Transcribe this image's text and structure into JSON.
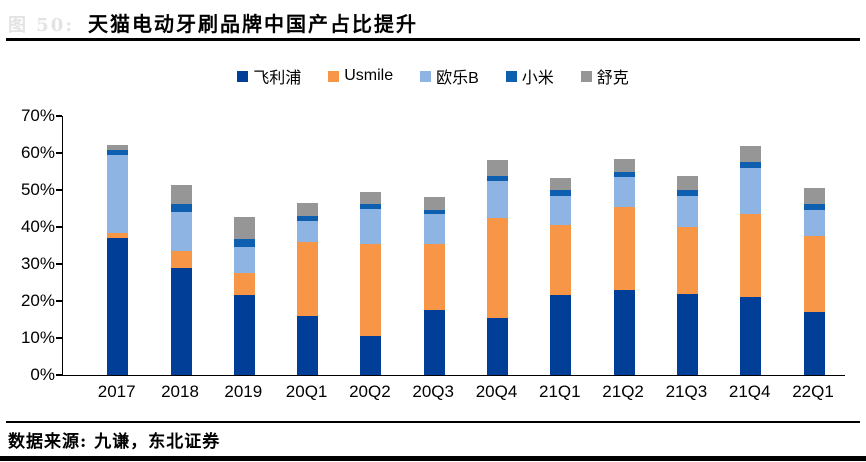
{
  "header": {
    "figure_label": "图  50:",
    "title": "天猫电动牙刷品牌中国产占比提升"
  },
  "footer": {
    "source": "数据来源: 九谦，东北证券"
  },
  "chart_data": {
    "type": "bar",
    "stacked": true,
    "title": "天猫电动牙刷品牌中国产占比提升",
    "legend_position": "top",
    "grid": false,
    "y_axis": {
      "min": 0,
      "max": 70,
      "step": 10,
      "unit": "%",
      "tick_labels": [
        "0%",
        "10%",
        "20%",
        "30%",
        "40%",
        "50%",
        "60%",
        "70%"
      ]
    },
    "categories": [
      "2017",
      "2018",
      "2019",
      "20Q1",
      "20Q2",
      "20Q3",
      "20Q4",
      "21Q1",
      "21Q2",
      "21Q3",
      "21Q4",
      "22Q1"
    ],
    "series": [
      {
        "key": "philips",
        "name": "飞利浦",
        "color": "#003E98",
        "values": [
          37,
          29,
          21.5,
          16,
          10.5,
          17.5,
          15.5,
          21.5,
          23,
          22,
          21,
          17
        ]
      },
      {
        "key": "usmile",
        "name": "Usmile",
        "color": "#F79646",
        "values": [
          1.5,
          4.5,
          6,
          20,
          25,
          18,
          27,
          19,
          22.5,
          18,
          22.5,
          20.5
        ]
      },
      {
        "key": "oral-b",
        "name": "欧乐B",
        "color": "#8DB4E2",
        "values": [
          21,
          10.5,
          7,
          5.5,
          9.5,
          8,
          10,
          8,
          8,
          8.5,
          12.5,
          7
        ]
      },
      {
        "key": "xiaomi",
        "name": "小米",
        "color": "#0E5FB0",
        "values": [
          1.2,
          2.3,
          2.2,
          1.5,
          1.1,
          1.1,
          1.3,
          1.4,
          1.5,
          1.5,
          1.6,
          1.7
        ]
      },
      {
        "key": "saky",
        "name": "舒克",
        "color": "#969696",
        "values": [
          1.5,
          5,
          6,
          3.5,
          3.3,
          3.6,
          4.3,
          3.4,
          3.4,
          3.7,
          4.4,
          4.3
        ]
      }
    ]
  }
}
